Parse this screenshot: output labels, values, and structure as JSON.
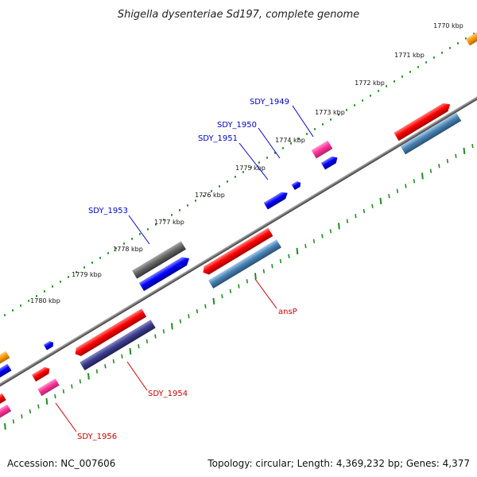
{
  "title": "Shigella dysenteriae Sd197, complete genome",
  "footer": {
    "accession": "Accession: NC_007606",
    "summary": "Topology: circular; Length: 4,369,232 bp; Genes: 4,377"
  },
  "kbp_labels": [
    "1770 kbp",
    "1771 kbp",
    "1772 kbp",
    "1773 kbp",
    "1774 kbp",
    "1775 kbp",
    "1776 kbp",
    "1777 kbp",
    "1778 kbp",
    "1779 kbp",
    "1780 kbp"
  ],
  "gene_labels": {
    "sdy1949": "SDY_1949",
    "sdy1950": "SDY_1950",
    "sdy1951": "SDY_1951",
    "sdy1953": "SDY_1953",
    "ansP": "ansP",
    "sdy1954": "SDY_1954",
    "sdy1956": "SDY_1956"
  },
  "colors": {
    "red": "#ff0000",
    "blue": "#0000ff",
    "pink": "#ff3399",
    "orange": "#ff9900",
    "gray": "#666666",
    "steelblue": "#4682b4",
    "navy": "#3d3d8f",
    "tick_green": "#228b22",
    "label_blue": "#0000cc",
    "label_red": "#cc0000"
  }
}
